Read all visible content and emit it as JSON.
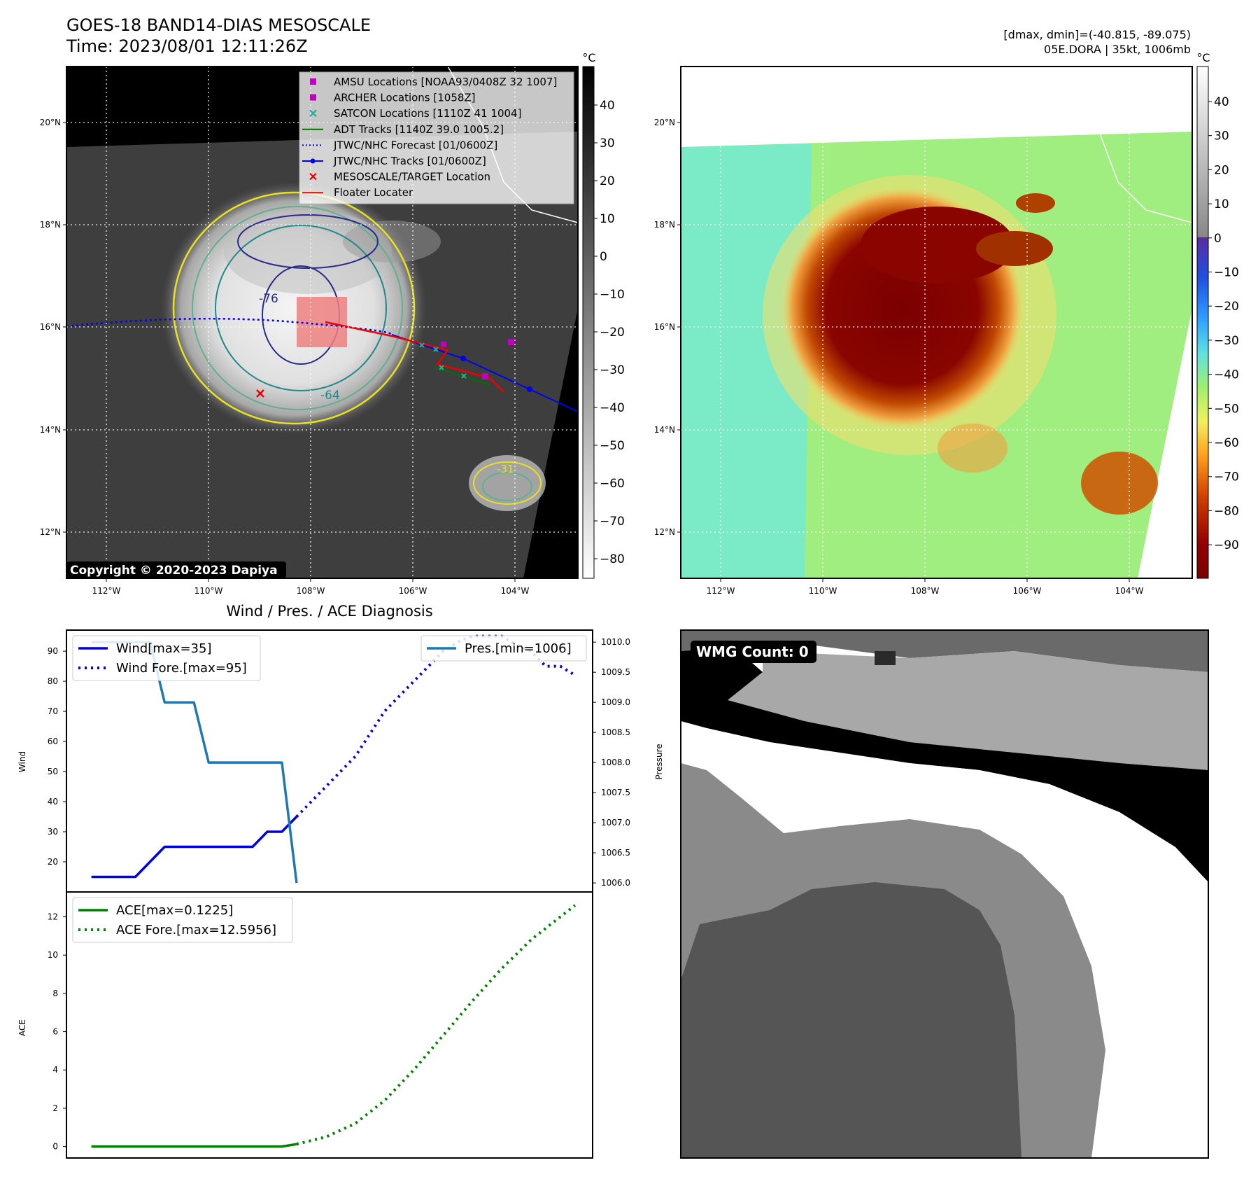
{
  "header": {
    "title": "GOES-18 BAND14-DIAS MESOSCALE",
    "time": "Time: 2023/08/01 12:11:26Z",
    "dmax_dmin": "[dmax, dmin]=(-40.815, -89.075)",
    "storm": "05E.DORA | 35kt, 1006mb"
  },
  "maps": {
    "lat_ticks": [
      "20°N",
      "18°N",
      "16°N",
      "14°N",
      "12°N"
    ],
    "lon_ticks": [
      "112°W",
      "110°W",
      "108°W",
      "106°W",
      "104°W"
    ],
    "copyright": "Copyright © 2020-2023 Dapiya",
    "contour_labels": [
      "-64",
      "-76",
      "-31"
    ],
    "colorbar_unit": "°C",
    "gray_colorbar_ticks": [
      "40",
      "30",
      "20",
      "10",
      "0",
      "−10",
      "−20",
      "−30",
      "−40",
      "−50",
      "−60",
      "−70",
      "−80"
    ],
    "color_colorbar_ticks": [
      "40",
      "30",
      "20",
      "10",
      "0",
      "−10",
      "−20",
      "−30",
      "−40",
      "−50",
      "−60",
      "−70",
      "−80",
      "−90"
    ],
    "legend": [
      {
        "label": "AMSU Locations [NOAA93/0408Z 32 1007]",
        "marker": "square",
        "color": "#c000c0"
      },
      {
        "label": "ARCHER Locations [1058Z]",
        "marker": "square",
        "color": "#c000c0"
      },
      {
        "label": "SATCON Locations [1110Z 41 1004]",
        "marker": "x",
        "color": "#20b0a0"
      },
      {
        "label": "ADT Tracks [1140Z 39.0 1005.2]",
        "marker": "line",
        "color": "#007000"
      },
      {
        "label": "JTWC/NHC Forecast [01/0600Z]",
        "marker": "dotted",
        "color": "#0000ee"
      },
      {
        "label": "JTWC/NHC Tracks [01/0600Z]",
        "marker": "line-dot",
        "color": "#0000ee"
      },
      {
        "label": "MESOSCALE/TARGET Location",
        "marker": "x",
        "color": "#ee0000"
      },
      {
        "label": "Floater Locater",
        "marker": "line",
        "color": "#ee0000"
      }
    ]
  },
  "wmg": {
    "label": "WMG Count: 0"
  },
  "chart_data": [
    {
      "type": "line",
      "title": "Wind / Pres. / ACE Diagnosis",
      "ylabel": "Wind",
      "ylabel_right": "Pressure",
      "ylim": [
        10,
        97
      ],
      "ylim_right": [
        1005.85,
        1010.2
      ],
      "yticks": [
        20,
        30,
        40,
        50,
        60,
        70,
        80,
        90
      ],
      "yticks_right": [
        1006.0,
        1006.5,
        1007.0,
        1007.5,
        1008.0,
        1008.5,
        1009.0,
        1009.5,
        1010.0
      ],
      "legend_left": [
        "Wind[max=35]",
        "Wind Fore.[max=95]"
      ],
      "legend_right": [
        "Pres.[min=1006]"
      ],
      "series": [
        {
          "name": "Wind[max=35]",
          "axis": "left",
          "style": "solid",
          "color": "#0000dd",
          "x": [
            0,
            3,
            5,
            7,
            9,
            11,
            12,
            13,
            14
          ],
          "y": [
            15,
            15,
            25,
            25,
            25,
            25,
            30,
            30,
            35
          ]
        },
        {
          "name": "Wind Fore.[max=95]",
          "axis": "left",
          "style": "dotted",
          "color": "#0000dd",
          "x": [
            14,
            16,
            18,
            20,
            22,
            24,
            25,
            26,
            27,
            28,
            29,
            30,
            31,
            32,
            33
          ],
          "y": [
            35,
            45,
            55,
            70,
            80,
            90,
            93,
            95,
            95,
            95,
            92,
            90,
            85,
            85,
            82
          ]
        },
        {
          "name": "Pres.[min=1006]",
          "axis": "right",
          "style": "solid",
          "color": "#1f77b4",
          "x": [
            0,
            4,
            5,
            7,
            8,
            13,
            14
          ],
          "y": [
            1010.0,
            1010.0,
            1009.0,
            1009.0,
            1008.0,
            1008.0,
            1006.0
          ]
        }
      ]
    },
    {
      "type": "line",
      "ylabel": "ACE",
      "ylim": [
        -0.6,
        13.3
      ],
      "yticks": [
        0,
        2,
        4,
        6,
        8,
        10,
        12
      ],
      "legend": [
        "ACE[max=0.1225]",
        "ACE Fore.[max=12.5956]"
      ],
      "series": [
        {
          "name": "ACE[max=0.1225]",
          "style": "solid",
          "color": "#008000",
          "x": [
            0,
            13,
            14
          ],
          "y": [
            0,
            0,
            0.1225
          ]
        },
        {
          "name": "ACE Fore.[max=12.5956]",
          "style": "dotted",
          "color": "#008000",
          "x": [
            14,
            16,
            18,
            20,
            22,
            24,
            26,
            28,
            30,
            33
          ],
          "y": [
            0.1225,
            0.5,
            1.2,
            2.4,
            4.0,
            5.8,
            7.6,
            9.3,
            10.8,
            12.6
          ]
        }
      ]
    }
  ]
}
